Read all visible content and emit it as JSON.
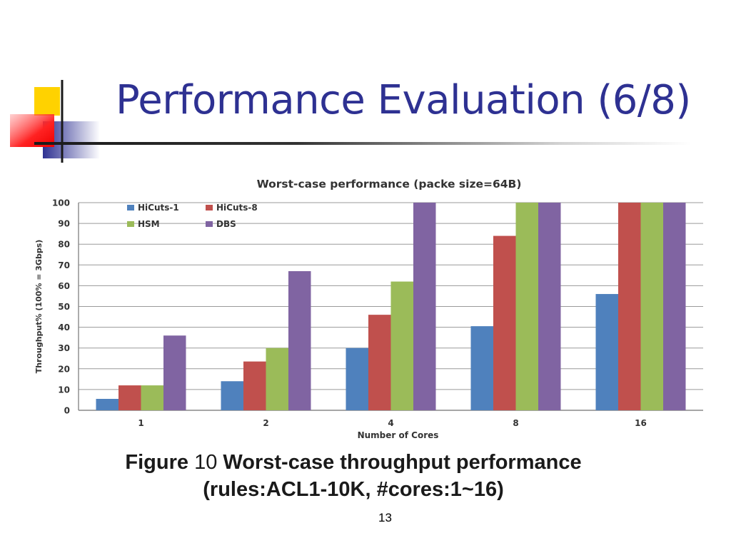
{
  "slide": {
    "title": "Performance Evaluation (6/8)",
    "caption_lead": "Figure",
    "caption_num": "10",
    "caption_rest": "Worst-case throughput performance",
    "caption_line2": "(rules:ACL1-10K, #cores:1~16)",
    "page_number": "13"
  },
  "colors": {
    "title": "#2e3192",
    "series": [
      "#4f81bd",
      "#c0504d",
      "#9bbb59",
      "#8064a2"
    ]
  },
  "chart_data": {
    "type": "bar",
    "title": "Worst-case performance (packe size=64B)",
    "xlabel": "Number of Cores",
    "ylabel": "Throughput% (100% = 3Gbps)",
    "ylim": [
      0,
      100
    ],
    "yticks": [
      0,
      10,
      20,
      30,
      40,
      50,
      60,
      70,
      80,
      90,
      100
    ],
    "categories": [
      "1",
      "2",
      "4",
      "8",
      "16"
    ],
    "series": [
      {
        "name": "HiCuts-1",
        "values": [
          5.5,
          14,
          30,
          40.5,
          56
        ]
      },
      {
        "name": "HiCuts-8",
        "values": [
          12,
          23.5,
          46,
          84,
          100
        ]
      },
      {
        "name": "HSM",
        "values": [
          12,
          30,
          62,
          100,
          100
        ]
      },
      {
        "name": "DBS",
        "values": [
          36,
          67,
          100,
          100,
          100
        ]
      }
    ],
    "grid": true,
    "legend": "top-left"
  }
}
